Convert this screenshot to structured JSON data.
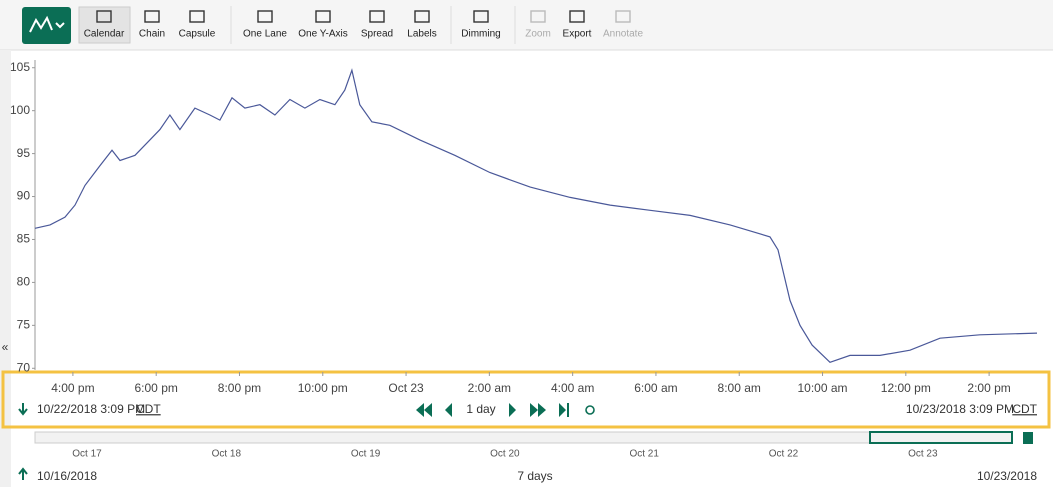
{
  "toolbar": {
    "buttons": [
      {
        "label": "Calendar"
      },
      {
        "label": "Chain"
      },
      {
        "label": "Capsule"
      },
      {
        "label": "One Lane"
      },
      {
        "label": "One Y-Axis"
      },
      {
        "label": "Spread"
      },
      {
        "label": "Labels"
      },
      {
        "label": "Dimming"
      },
      {
        "label": "Zoom",
        "disabled": true
      },
      {
        "label": "Export"
      },
      {
        "label": "Annotate",
        "disabled": true
      }
    ]
  },
  "chart_data": {
    "type": "line",
    "x": [
      15.09,
      15.45,
      15.81,
      16.05,
      16.29,
      16.65,
      16.94,
      17.13,
      17.49,
      17.85,
      18.09,
      18.33,
      18.57,
      18.93,
      19.29,
      19.53,
      19.82,
      20.13,
      20.49,
      20.85,
      21.21,
      21.57,
      21.93,
      22.29,
      22.53,
      22.7,
      22.89,
      23.18,
      23.61,
      24.33,
      25.17,
      26.01,
      26.98,
      27.94,
      28.9,
      29.86,
      30.82,
      31.78,
      32.74,
      32.93,
      33.22,
      33.46,
      33.75,
      34.18,
      34.66,
      35.38,
      36.1,
      36.82,
      37.78,
      39.15
    ],
    "series": [
      {
        "color": "#4a5899",
        "values": [
          86.3,
          86.7,
          87.6,
          89,
          91.3,
          93.6,
          95.4,
          94.2,
          94.8,
          96.6,
          97.8,
          99.5,
          97.8,
          100.3,
          99.5,
          98.9,
          101.5,
          100.3,
          100.7,
          99.5,
          101.3,
          100.3,
          101.3,
          100.7,
          102.4,
          104.7,
          100.7,
          98.7,
          98.3,
          96.6,
          94.8,
          92.8,
          91.1,
          89.9,
          89,
          88.4,
          87.8,
          86.7,
          85.3,
          83.8,
          77.9,
          75,
          72.7,
          70.7,
          71.5,
          71.5,
          72.1,
          73.5,
          73.9,
          74.1
        ]
      }
    ],
    "xlim": [
      15.09,
      39.15
    ],
    "xticks": [
      {
        "value": 16,
        "label": "4:00 pm"
      },
      {
        "value": 18,
        "label": "6:00 pm"
      },
      {
        "value": 20,
        "label": "8:00 pm"
      },
      {
        "value": 22,
        "label": "10:00 pm"
      },
      {
        "value": 24,
        "label": "Oct 23"
      },
      {
        "value": 26,
        "label": "2:00 am"
      },
      {
        "value": 28,
        "label": "4:00 am"
      },
      {
        "value": 30,
        "label": "6:00 am"
      },
      {
        "value": 32,
        "label": "8:00 am"
      },
      {
        "value": 34,
        "label": "10:00 am"
      },
      {
        "value": 36,
        "label": "12:00 pm"
      },
      {
        "value": 38,
        "label": "2:00 pm"
      }
    ],
    "ylim": [
      69.8,
      105.9
    ],
    "yticks": [
      70,
      75,
      80,
      85,
      90,
      95,
      100,
      105
    ],
    "grid": false
  },
  "range": {
    "start": "10/22/2018 3:09 PM",
    "start_tz": "CDT",
    "duration": "1 day",
    "end": "10/23/2018 3:09 PM",
    "end_tz": "CDT"
  },
  "navigator": {
    "ticks": [
      "Oct 17",
      "Oct 18",
      "Oct 19",
      "Oct 20",
      "Oct 21",
      "Oct 22",
      "Oct 23"
    ],
    "start": "10/16/2018",
    "span": "7 days",
    "end": "10/23/2018"
  }
}
